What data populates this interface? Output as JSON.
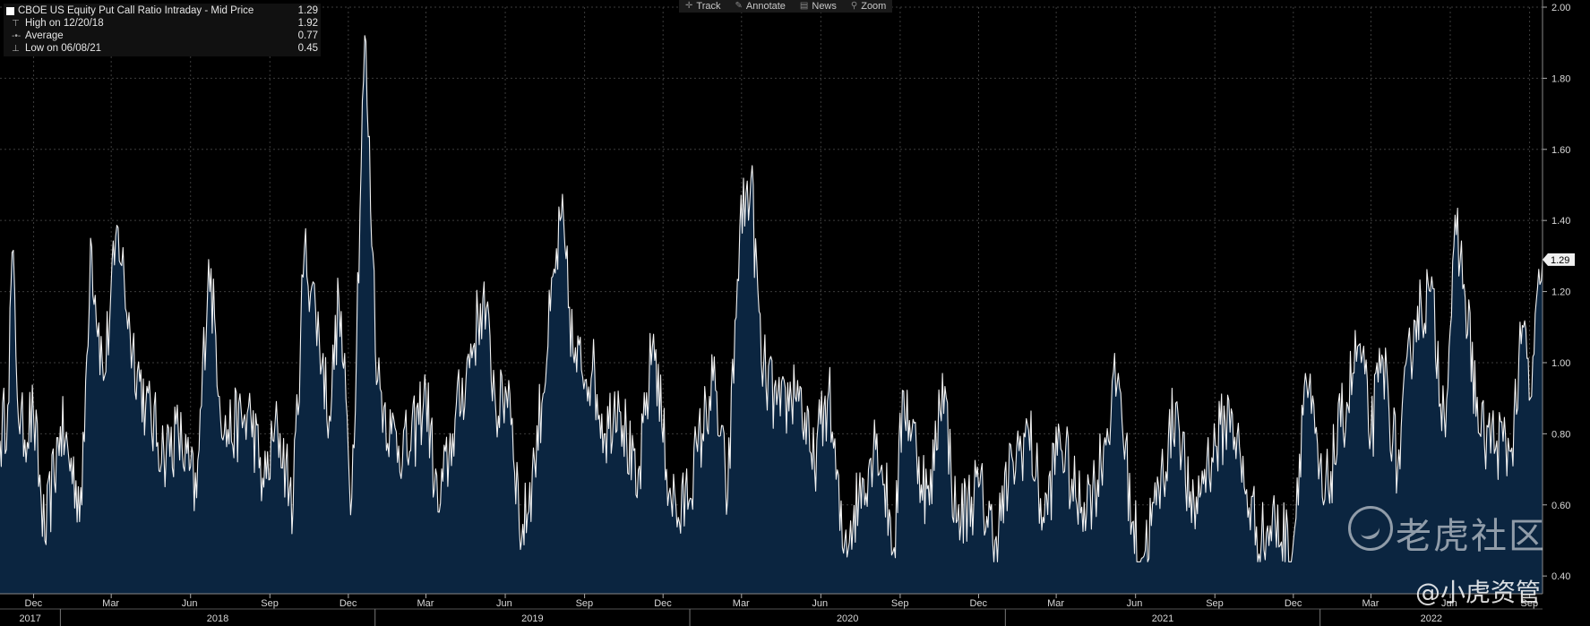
{
  "toolbar": {
    "items": [
      {
        "label": "Track",
        "icon": "crosshair-icon"
      },
      {
        "label": "Annotate",
        "icon": "pencil-icon"
      },
      {
        "label": "News",
        "icon": "news-icon"
      },
      {
        "label": "Zoom",
        "icon": "magnifier-icon"
      }
    ]
  },
  "legend": {
    "series_label": "CBOE US Equity Put Call Ratio Intraday - Mid Price",
    "series_value": "1.29",
    "high_label": "High on 12/20/18",
    "high_value": "1.92",
    "avg_label": "Average",
    "avg_value": "0.77",
    "low_label": "Low on 06/08/21",
    "low_value": "0.45"
  },
  "watermark": {
    "main": "老虎社区",
    "sub": "@小虎资管"
  },
  "chart_data": {
    "type": "area",
    "series": [
      {
        "name": "CBOE US Equity Put Call Ratio Intraday - Mid Price",
        "last": 1.29
      }
    ],
    "x_start": "2017-10-23",
    "x_end": "2022-09-16",
    "ylim": [
      0.35,
      2.0
    ],
    "yticks": [
      "0.40",
      "0.60",
      "0.80",
      "1.00",
      "1.20",
      "1.40",
      "1.60",
      "1.80",
      "2.00"
    ],
    "last_value_label": "1.29",
    "month_ticks": [
      "Dec",
      "Mar",
      "Jun",
      "Sep",
      "Dec",
      "Mar",
      "Jun",
      "Sep",
      "Dec",
      "Mar",
      "Jun",
      "Sep",
      "Dec",
      "Mar",
      "Jun",
      "Sep",
      "Dec",
      "Mar",
      "Jun",
      "Sep"
    ],
    "year_labels": [
      "2017",
      "2018",
      "2019",
      "2020",
      "2021",
      "2022"
    ],
    "anchors": [
      [
        "2017-10-23",
        0.78
      ],
      [
        "2017-11-01",
        0.88
      ],
      [
        "2017-11-06",
        1.31
      ],
      [
        "2017-11-15",
        0.8
      ],
      [
        "2017-12-01",
        0.85
      ],
      [
        "2017-12-14",
        0.5
      ],
      [
        "2018-01-01",
        0.82
      ],
      [
        "2018-01-26",
        0.6
      ],
      [
        "2018-02-05",
        1.35
      ],
      [
        "2018-02-20",
        0.95
      ],
      [
        "2018-03-09",
        1.38
      ],
      [
        "2018-03-23",
        1.08
      ],
      [
        "2018-04-10",
        0.88
      ],
      [
        "2018-05-01",
        0.75
      ],
      [
        "2018-05-18",
        0.8
      ],
      [
        "2018-06-08",
        0.62
      ],
      [
        "2018-06-22",
        1.29
      ],
      [
        "2018-07-10",
        0.8
      ],
      [
        "2018-08-10",
        0.85
      ],
      [
        "2018-08-25",
        0.65
      ],
      [
        "2018-09-10",
        0.82
      ],
      [
        "2018-09-28",
        0.6
      ],
      [
        "2018-10-11",
        1.32
      ],
      [
        "2018-10-24",
        1.15
      ],
      [
        "2018-11-09",
        0.85
      ],
      [
        "2018-11-20",
        1.18
      ],
      [
        "2018-12-05",
        0.62
      ],
      [
        "2018-12-20",
        1.92
      ],
      [
        "2019-01-04",
        0.95
      ],
      [
        "2019-01-20",
        0.8
      ],
      [
        "2019-02-10",
        0.75
      ],
      [
        "2019-03-01",
        0.92
      ],
      [
        "2019-03-15",
        0.58
      ],
      [
        "2019-04-01",
        0.8
      ],
      [
        "2019-05-06",
        1.18
      ],
      [
        "2019-05-24",
        0.85
      ],
      [
        "2019-06-05",
        0.95
      ],
      [
        "2019-06-20",
        0.5
      ],
      [
        "2019-07-05",
        0.72
      ],
      [
        "2019-08-05",
        1.41
      ],
      [
        "2019-08-20",
        1.0
      ],
      [
        "2019-09-10",
        0.98
      ],
      [
        "2019-09-25",
        0.8
      ],
      [
        "2019-10-10",
        0.92
      ],
      [
        "2019-11-01",
        0.62
      ],
      [
        "2019-11-20",
        1.08
      ],
      [
        "2019-12-05",
        0.7
      ],
      [
        "2019-12-20",
        0.55
      ],
      [
        "2020-01-10",
        0.75
      ],
      [
        "2020-01-28",
        0.95
      ],
      [
        "2020-02-14",
        0.62
      ],
      [
        "2020-02-28",
        1.38
      ],
      [
        "2020-03-12",
        1.52
      ],
      [
        "2020-03-24",
        1.0
      ],
      [
        "2020-04-15",
        0.85
      ],
      [
        "2020-05-05",
        0.95
      ],
      [
        "2020-05-22",
        0.7
      ],
      [
        "2020-06-10",
        0.92
      ],
      [
        "2020-06-26",
        0.48
      ],
      [
        "2020-07-15",
        0.62
      ],
      [
        "2020-08-05",
        0.8
      ],
      [
        "2020-08-25",
        0.48
      ],
      [
        "2020-09-05",
        0.92
      ],
      [
        "2020-09-20",
        0.75
      ],
      [
        "2020-10-05",
        0.6
      ],
      [
        "2020-10-20",
        0.97
      ],
      [
        "2020-11-05",
        0.55
      ],
      [
        "2020-12-01",
        0.65
      ],
      [
        "2020-12-20",
        0.5
      ],
      [
        "2021-01-10",
        0.72
      ],
      [
        "2021-01-28",
        0.81
      ],
      [
        "2021-02-15",
        0.55
      ],
      [
        "2021-03-05",
        0.8
      ],
      [
        "2021-03-25",
        0.6
      ],
      [
        "2021-04-15",
        0.65
      ],
      [
        "2021-05-12",
        0.97
      ],
      [
        "2021-05-28",
        0.55
      ],
      [
        "2021-06-08",
        0.45
      ],
      [
        "2021-06-25",
        0.6
      ],
      [
        "2021-07-19",
        0.89
      ],
      [
        "2021-08-05",
        0.55
      ],
      [
        "2021-08-20",
        0.7
      ],
      [
        "2021-09-20",
        0.87
      ],
      [
        "2021-10-05",
        0.65
      ],
      [
        "2021-10-25",
        0.5
      ],
      [
        "2021-11-10",
        0.55
      ],
      [
        "2021-11-30",
        0.47
      ],
      [
        "2021-12-15",
        0.97
      ],
      [
        "2022-01-05",
        0.6
      ],
      [
        "2022-01-25",
        0.82
      ],
      [
        "2022-02-15",
        1.05
      ],
      [
        "2022-03-01",
        0.8
      ],
      [
        "2022-03-15",
        1.01
      ],
      [
        "2022-04-01",
        0.7
      ],
      [
        "2022-04-20",
        1.12
      ],
      [
        "2022-05-09",
        1.2
      ],
      [
        "2022-05-25",
        0.85
      ],
      [
        "2022-06-08",
        1.36
      ],
      [
        "2022-06-17",
        1.22
      ],
      [
        "2022-07-05",
        0.8
      ],
      [
        "2022-07-25",
        0.78
      ],
      [
        "2022-08-10",
        0.75
      ],
      [
        "2022-08-25",
        1.1
      ],
      [
        "2022-09-02",
        0.9
      ],
      [
        "2022-09-13",
        1.22
      ],
      [
        "2022-09-16",
        1.29
      ]
    ]
  }
}
